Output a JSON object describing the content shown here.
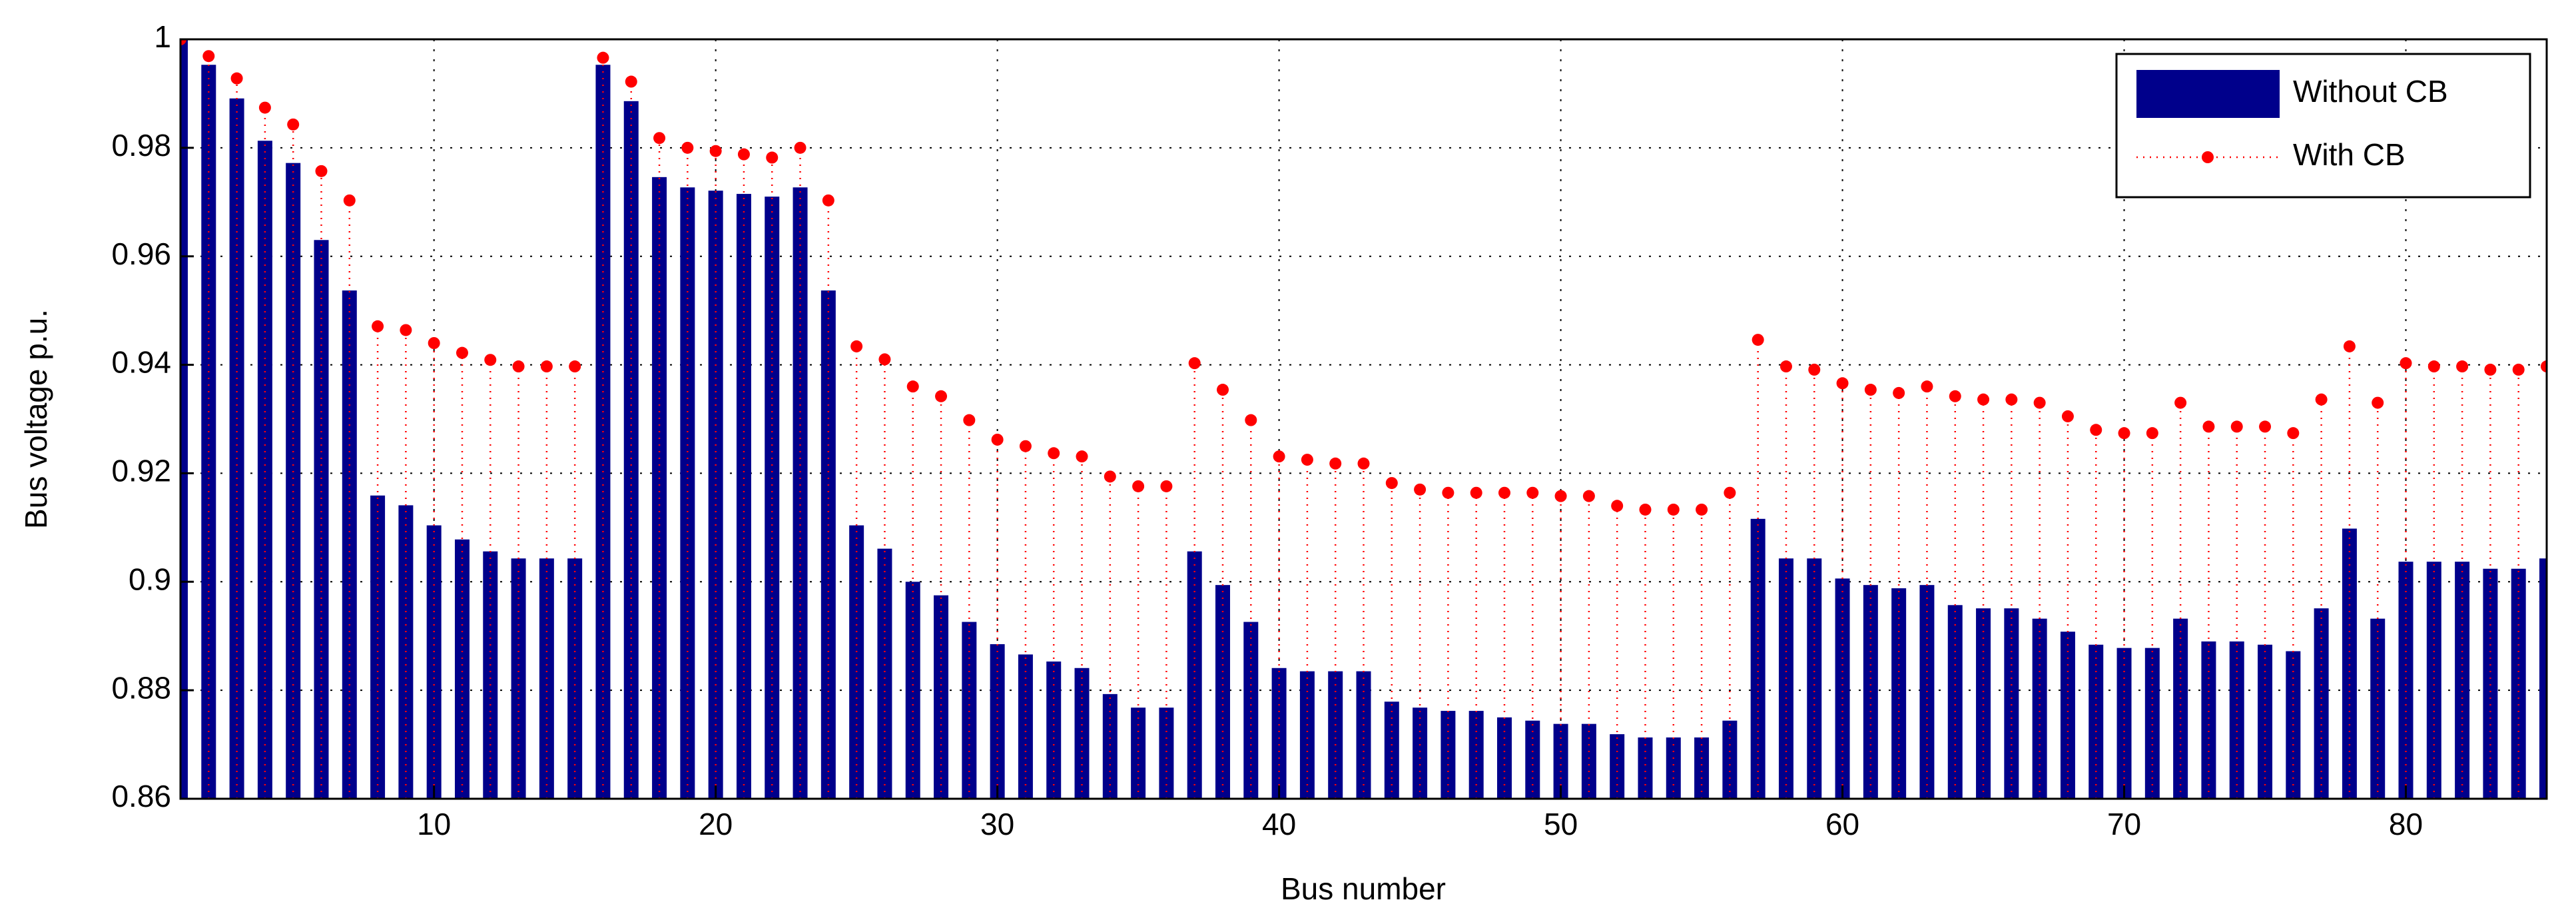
{
  "chart_data": {
    "type": "bar",
    "xlabel": "Bus number",
    "ylabel": "Bus voltage p.u.",
    "x": [
      1,
      2,
      3,
      4,
      5,
      6,
      7,
      8,
      9,
      10,
      11,
      12,
      13,
      14,
      15,
      16,
      17,
      18,
      19,
      20,
      21,
      22,
      23,
      24,
      25,
      26,
      27,
      28,
      29,
      30,
      31,
      32,
      33,
      34,
      35,
      36,
      37,
      38,
      39,
      40,
      41,
      42,
      43,
      44,
      45,
      46,
      47,
      48,
      49,
      50,
      51,
      52,
      53,
      54,
      55,
      56,
      57,
      58,
      59,
      60,
      61,
      62,
      63,
      64,
      65,
      66,
      67,
      68,
      69,
      70,
      71,
      72,
      73,
      74,
      75,
      76,
      77,
      78,
      79,
      80,
      81,
      82,
      83,
      84,
      85
    ],
    "series": [
      {
        "name": "Without CB",
        "style": "bar",
        "color": "#00008b",
        "values": [
          1.0,
          0.9953,
          0.9891,
          0.9813,
          0.9772,
          0.963,
          0.9537,
          0.9159,
          0.9141,
          0.9104,
          0.9078,
          0.9056,
          0.9043,
          0.9043,
          0.9043,
          0.9953,
          0.9886,
          0.9746,
          0.9727,
          0.9721,
          0.9715,
          0.971,
          0.9727,
          0.9537,
          0.9104,
          0.9061,
          0.9,
          0.8975,
          0.8926,
          0.8885,
          0.8866,
          0.8853,
          0.8841,
          0.8793,
          0.8768,
          0.8768,
          0.9056,
          0.8994,
          0.8926,
          0.8841,
          0.8835,
          0.8835,
          0.8835,
          0.8779,
          0.8768,
          0.8762,
          0.8762,
          0.875,
          0.8744,
          0.8738,
          0.8738,
          0.8719,
          0.8713,
          0.8713,
          0.8713,
          0.8744,
          0.9116,
          0.9043,
          0.9043,
          0.9006,
          0.8994,
          0.8988,
          0.8994,
          0.8957,
          0.8951,
          0.8951,
          0.8932,
          0.8908,
          0.8884,
          0.8878,
          0.8878,
          0.8932,
          0.889,
          0.889,
          0.8884,
          0.8872,
          0.8951,
          0.9098,
          0.8932,
          0.9037,
          0.9037,
          0.9037,
          0.9024,
          0.9024,
          0.9043
        ]
      },
      {
        "name": "With CB",
        "style": "stem",
        "color": "#ff0000",
        "values": [
          1.0,
          0.9969,
          0.9928,
          0.9874,
          0.9843,
          0.9757,
          0.9703,
          0.9471,
          0.9464,
          0.944,
          0.9422,
          0.9409,
          0.9397,
          0.9397,
          0.9397,
          0.9966,
          0.9922,
          0.9818,
          0.98,
          0.9794,
          0.9788,
          0.9782,
          0.98,
          0.9703,
          0.9434,
          0.941,
          0.936,
          0.9342,
          0.9298,
          0.9262,
          0.925,
          0.9237,
          0.9231,
          0.9194,
          0.9176,
          0.9176,
          0.9403,
          0.9354,
          0.9298,
          0.9231,
          0.9225,
          0.9218,
          0.9218,
          0.9182,
          0.917,
          0.9164,
          0.9164,
          0.9164,
          0.9164,
          0.9158,
          0.9158,
          0.914,
          0.9133,
          0.9133,
          0.9133,
          0.9164,
          0.9446,
          0.9397,
          0.9391,
          0.9366,
          0.9354,
          0.9348,
          0.936,
          0.9342,
          0.9336,
          0.9336,
          0.933,
          0.9305,
          0.928,
          0.9274,
          0.9274,
          0.933,
          0.9286,
          0.9286,
          0.9286,
          0.9274,
          0.9336,
          0.9434,
          0.933,
          0.9403,
          0.9397,
          0.9397,
          0.9391,
          0.9391,
          0.9397
        ]
      }
    ],
    "xlim": [
      1,
      85
    ],
    "xticks": [
      10,
      20,
      30,
      40,
      50,
      60,
      70,
      80
    ],
    "ylim": [
      0.86,
      1
    ],
    "yticks": [
      0.86,
      0.88,
      0.9,
      0.92,
      0.94,
      0.96,
      0.98,
      1
    ],
    "grid": true,
    "legend": "northeast"
  }
}
